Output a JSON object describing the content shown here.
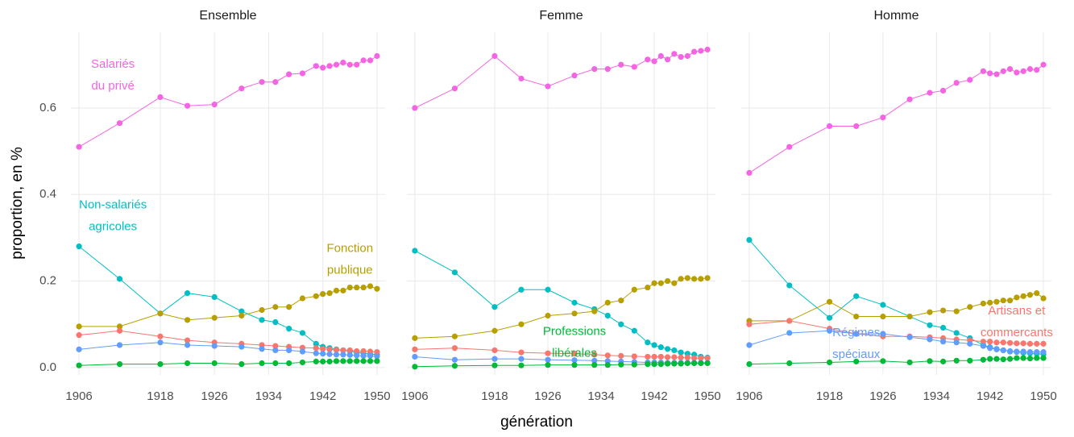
{
  "axis_labels": {
    "x": "génération",
    "y": "proportion, en %"
  },
  "chart_data": [
    {
      "type": "line",
      "title": "Ensemble",
      "x": [
        1906,
        1912,
        1918,
        1922,
        1926,
        1930,
        1933,
        1935,
        1937,
        1939,
        1941,
        1942,
        1943,
        1944,
        1945,
        1946,
        1947,
        1948,
        1949,
        1950
      ],
      "xlim": [
        1904.8,
        1951.2
      ],
      "xticks": [
        1906,
        1918,
        1926,
        1934,
        1942,
        1950
      ],
      "ylim": [
        -0.017,
        0.775
      ],
      "yticks": [
        {
          "value": 0,
          "label": "0.0"
        },
        0.2,
        0.4,
        0.6
      ],
      "grid": true,
      "series": [
        {
          "color": "#F564E3",
          "values": [
            0.51,
            0.565,
            0.625,
            0.605,
            0.608,
            0.645,
            0.66,
            0.66,
            0.678,
            0.68,
            0.697,
            0.693,
            0.697,
            0.7,
            0.705,
            0.7,
            0.7,
            0.71,
            0.71,
            0.72
          ]
        },
        {
          "color": "#00BFC4",
          "values": [
            0.28,
            0.205,
            0.125,
            0.172,
            0.163,
            0.13,
            0.11,
            0.105,
            0.09,
            0.08,
            0.055,
            0.048,
            0.045,
            0.042,
            0.04,
            0.038,
            0.035,
            0.033,
            0.031,
            0.03
          ]
        },
        {
          "color": "#B79F00",
          "values": [
            0.095,
            0.095,
            0.125,
            0.11,
            0.115,
            0.12,
            0.133,
            0.14,
            0.14,
            0.16,
            0.165,
            0.17,
            0.172,
            0.178,
            0.178,
            0.185,
            0.185,
            0.185,
            0.188,
            0.182
          ]
        },
        {
          "color": "#F8766D",
          "values": [
            0.075,
            0.085,
            0.072,
            0.063,
            0.058,
            0.055,
            0.052,
            0.05,
            0.048,
            0.046,
            0.045,
            0.043,
            0.042,
            0.041,
            0.04,
            0.04,
            0.038,
            0.038,
            0.037,
            0.036
          ]
        },
        {
          "color": "#619CFF",
          "values": [
            0.042,
            0.052,
            0.058,
            0.052,
            0.05,
            0.048,
            0.043,
            0.04,
            0.04,
            0.037,
            0.033,
            0.032,
            0.031,
            0.03,
            0.03,
            0.029,
            0.028,
            0.027,
            0.027,
            0.026
          ]
        },
        {
          "color": "#00BA38",
          "values": [
            0.005,
            0.008,
            0.008,
            0.01,
            0.01,
            0.008,
            0.01,
            0.01,
            0.01,
            0.012,
            0.014,
            0.014,
            0.014,
            0.015,
            0.015,
            0.015,
            0.015,
            0.015,
            0.015,
            0.015
          ]
        }
      ],
      "annotations": [
        {
          "text": [
            "Salariés",
            "du  privé"
          ]
        },
        {
          "text": [
            "Non-salariés",
            "agricoles"
          ]
        },
        {
          "text": [
            "Fonction",
            "publique"
          ]
        }
      ]
    },
    {
      "type": "line",
      "title": "Femme",
      "x": [
        1906,
        1912,
        1918,
        1922,
        1926,
        1930,
        1933,
        1935,
        1937,
        1939,
        1941,
        1942,
        1943,
        1944,
        1945,
        1946,
        1947,
        1948,
        1949,
        1950
      ],
      "xlim": [
        1904.8,
        1951.2
      ],
      "xticks": [
        1906,
        1918,
        1926,
        1934,
        1942,
        1950
      ],
      "ylim": [
        -0.017,
        0.775
      ],
      "yticks": [
        {
          "value": 0,
          "label": "0.0"
        },
        0.2,
        0.4,
        0.6
      ],
      "grid": true,
      "series": [
        {
          "color": "#F564E3",
          "values": [
            0.6,
            0.645,
            0.72,
            0.668,
            0.65,
            0.675,
            0.69,
            0.69,
            0.7,
            0.695,
            0.712,
            0.708,
            0.72,
            0.712,
            0.725,
            0.718,
            0.72,
            0.73,
            0.732,
            0.735
          ]
        },
        {
          "color": "#00BFC4",
          "values": [
            0.27,
            0.22,
            0.14,
            0.18,
            0.18,
            0.15,
            0.135,
            0.12,
            0.1,
            0.085,
            0.058,
            0.052,
            0.047,
            0.043,
            0.04,
            0.035,
            0.032,
            0.03,
            0.025,
            0.023
          ]
        },
        {
          "color": "#B79F00",
          "values": [
            0.068,
            0.072,
            0.085,
            0.1,
            0.12,
            0.125,
            0.13,
            0.15,
            0.155,
            0.18,
            0.185,
            0.195,
            0.195,
            0.2,
            0.195,
            0.205,
            0.207,
            0.205,
            0.205,
            0.207
          ]
        },
        {
          "color": "#F8766D",
          "values": [
            0.042,
            0.045,
            0.04,
            0.035,
            0.033,
            0.032,
            0.03,
            0.028,
            0.027,
            0.026,
            0.025,
            0.025,
            0.025,
            0.024,
            0.024,
            0.023,
            0.023,
            0.022,
            0.022,
            0.022
          ]
        },
        {
          "color": "#619CFF",
          "values": [
            0.025,
            0.018,
            0.02,
            0.02,
            0.018,
            0.017,
            0.016,
            0.015,
            0.014,
            0.013,
            0.012,
            0.012,
            0.012,
            0.011,
            0.011,
            0.011,
            0.011,
            0.011,
            0.011,
            0.011
          ]
        },
        {
          "color": "#00BA38",
          "values": [
            0.002,
            0.004,
            0.005,
            0.005,
            0.006,
            0.006,
            0.006,
            0.006,
            0.007,
            0.007,
            0.008,
            0.008,
            0.008,
            0.009,
            0.009,
            0.009,
            0.01,
            0.01,
            0.01,
            0.01
          ]
        }
      ],
      "annotations": [
        {
          "text": [
            "Professions",
            "libérales"
          ]
        }
      ]
    },
    {
      "type": "line",
      "title": "Homme",
      "x": [
        1906,
        1912,
        1918,
        1922,
        1926,
        1930,
        1933,
        1935,
        1937,
        1939,
        1941,
        1942,
        1943,
        1944,
        1945,
        1946,
        1947,
        1948,
        1949,
        1950
      ],
      "xlim": [
        1904.8,
        1951.2
      ],
      "xticks": [
        1906,
        1918,
        1926,
        1934,
        1942,
        1950
      ],
      "ylim": [
        -0.017,
        0.775
      ],
      "yticks": [
        {
          "value": 0,
          "label": "0.0"
        },
        0.2,
        0.4,
        0.6
      ],
      "grid": true,
      "series": [
        {
          "color": "#F564E3",
          "values": [
            0.45,
            0.51,
            0.558,
            0.558,
            0.578,
            0.62,
            0.635,
            0.64,
            0.658,
            0.665,
            0.685,
            0.68,
            0.678,
            0.685,
            0.69,
            0.682,
            0.685,
            0.69,
            0.688,
            0.7
          ]
        },
        {
          "color": "#00BFC4",
          "values": [
            0.295,
            0.19,
            0.115,
            0.165,
            0.145,
            0.118,
            0.098,
            0.092,
            0.08,
            0.068,
            0.052,
            0.047,
            0.043,
            0.04,
            0.037,
            0.036,
            0.034,
            0.033,
            0.032,
            0.031
          ]
        },
        {
          "color": "#B79F00",
          "values": [
            0.108,
            0.108,
            0.152,
            0.118,
            0.118,
            0.118,
            0.128,
            0.132,
            0.13,
            0.14,
            0.148,
            0.15,
            0.152,
            0.155,
            0.155,
            0.162,
            0.165,
            0.168,
            0.172,
            0.16
          ]
        },
        {
          "color": "#F8766D",
          "values": [
            0.1,
            0.108,
            0.09,
            0.078,
            0.072,
            0.072,
            0.07,
            0.068,
            0.065,
            0.063,
            0.06,
            0.06,
            0.058,
            0.058,
            0.057,
            0.056,
            0.056,
            0.055,
            0.055,
            0.055
          ]
        },
        {
          "color": "#619CFF",
          "values": [
            0.052,
            0.08,
            0.085,
            0.078,
            0.078,
            0.07,
            0.065,
            0.06,
            0.058,
            0.055,
            0.05,
            0.045,
            0.042,
            0.04,
            0.038,
            0.037,
            0.037,
            0.036,
            0.036,
            0.036
          ]
        },
        {
          "color": "#00BA38",
          "values": [
            0.008,
            0.01,
            0.012,
            0.014,
            0.015,
            0.012,
            0.015,
            0.014,
            0.016,
            0.016,
            0.018,
            0.02,
            0.02,
            0.019,
            0.02,
            0.022,
            0.022,
            0.021,
            0.022,
            0.022
          ]
        }
      ],
      "annotations": [
        {
          "text": [
            "Régimes",
            "spéciaux"
          ]
        },
        {
          "text": [
            "Artisans et",
            "commercants"
          ]
        }
      ]
    }
  ]
}
